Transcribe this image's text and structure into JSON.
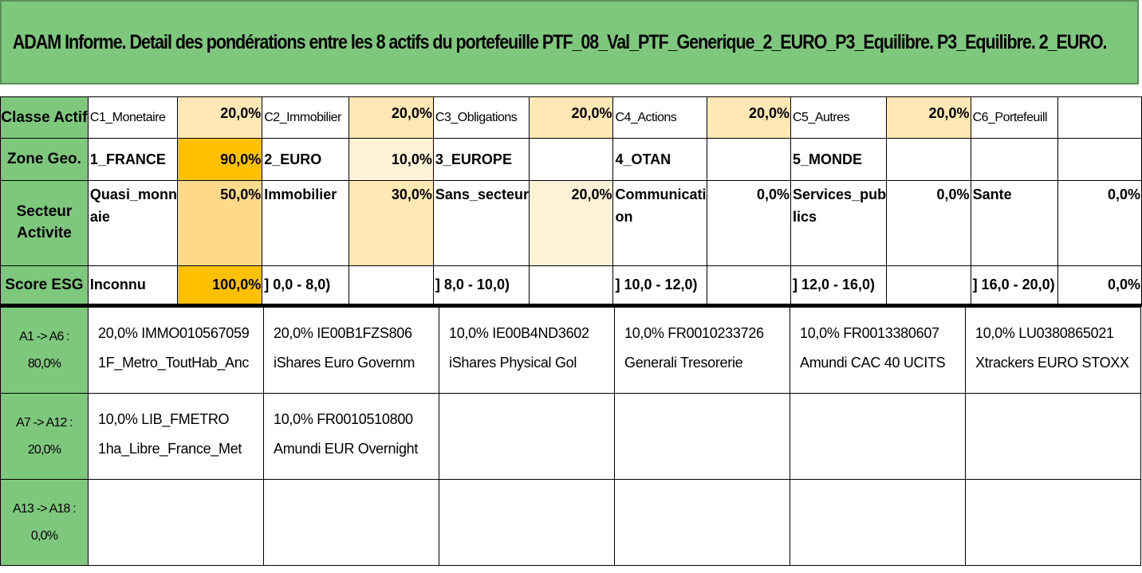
{
  "title": "ADAM Informe. Detail des pondérations entre les 8 actifs du portefeuille PTF_08_Val_PTF_Generique_2_EURO_P3_Equilibre. P3_Equilibre. 2_EURO.",
  "rows": {
    "classe": {
      "header": "Classe Actif",
      "cells": [
        {
          "label": "C1_Monetaire",
          "pct": "20,0%"
        },
        {
          "label": "C2_Immobilier",
          "pct": "20,0%"
        },
        {
          "label": "C3_Obligations",
          "pct": "20,0%"
        },
        {
          "label": "C4_Actions",
          "pct": "20,0%"
        },
        {
          "label": "C5_Autres",
          "pct": "20,0%"
        },
        {
          "label": "C6_Portefeuill",
          "pct": ""
        }
      ]
    },
    "zone": {
      "header": "Zone Geo.",
      "cells": [
        {
          "label": "1_FRANCE",
          "pct": "90,0%"
        },
        {
          "label": "2_EURO",
          "pct": "10,0%"
        },
        {
          "label": "3_EUROPE",
          "pct": ""
        },
        {
          "label": "4_OTAN",
          "pct": ""
        },
        {
          "label": "5_MONDE",
          "pct": ""
        },
        {
          "label": "",
          "pct": ""
        }
      ]
    },
    "secteur": {
      "header_line1": "Secteur",
      "header_line2": "Activite",
      "cells": [
        {
          "label_line1": "Quasi_monn",
          "label_line2": "aie",
          "pct": "50,0%"
        },
        {
          "label_line1": "Immobilier",
          "label_line2": "",
          "pct": "30,0%"
        },
        {
          "label_line1": "Sans_secteur",
          "label_line2": "",
          "pct": "20,0%"
        },
        {
          "label_line1": "Communicati",
          "label_line2": "on",
          "pct": "0,0%"
        },
        {
          "label_line1": "Services_pub",
          "label_line2": "lics",
          "pct": "0,0%"
        },
        {
          "label_line1": "Sante",
          "label_line2": "",
          "pct": "0,0%"
        }
      ]
    },
    "esg": {
      "header": "Score ESG",
      "cells": [
        {
          "label": "Inconnu",
          "pct": "100,0%"
        },
        {
          "label": "] 0,0 - 8,0)",
          "pct": ""
        },
        {
          "label": "] 8,0 - 10,0)",
          "pct": ""
        },
        {
          "label": "] 10,0 - 12,0)",
          "pct": ""
        },
        {
          "label": "] 12,0 - 16,0)",
          "pct": ""
        },
        {
          "label": "] 16,0 - 20,0)",
          "pct": "0,0%"
        }
      ]
    }
  },
  "groups": [
    {
      "header_line1": "A1 -> A6 :",
      "header_line2": "80,0%",
      "assets": [
        {
          "line1": "20,0% IMMO010567059",
          "line2": "1F_Metro_ToutHab_Anc"
        },
        {
          "line1": "20,0% IE00B1FZS806",
          "line2": "iShares Euro Governm"
        },
        {
          "line1": "10,0% IE00B4ND3602",
          "line2": "iShares Physical Gol"
        },
        {
          "line1": "10,0% FR0010233726",
          "line2": "Generali Tresorerie"
        },
        {
          "line1": "10,0% FR0013380607",
          "line2": "Amundi CAC 40 UCITS"
        },
        {
          "line1": "10,0% LU0380865021",
          "line2": "Xtrackers EURO STOXX"
        }
      ]
    },
    {
      "header_line1": "A7 -> A12 :",
      "header_line2": "20,0%",
      "assets": [
        {
          "line1": "10,0% LIB_FMETRO",
          "line2": "1ha_Libre_France_Met"
        },
        {
          "line1": "10,0% FR0010510800",
          "line2": "Amundi EUR Overnight"
        },
        {
          "line1": "",
          "line2": ""
        },
        {
          "line1": "",
          "line2": ""
        },
        {
          "line1": "",
          "line2": ""
        },
        {
          "line1": "",
          "line2": ""
        }
      ]
    },
    {
      "header_line1": "A13 -> A18 :",
      "header_line2": "0,0%",
      "assets": [
        {
          "line1": "",
          "line2": ""
        },
        {
          "line1": "",
          "line2": ""
        },
        {
          "line1": "",
          "line2": ""
        },
        {
          "line1": "",
          "line2": ""
        },
        {
          "line1": "",
          "line2": ""
        },
        {
          "line1": "",
          "line2": ""
        }
      ]
    }
  ],
  "colors": {
    "header_green": "#7ec87e",
    "heat_low": "#fdf1d6",
    "heat_mid": "#ffe8b3",
    "heat_high": "#ffd98a",
    "heat_max": "#ffc000"
  }
}
